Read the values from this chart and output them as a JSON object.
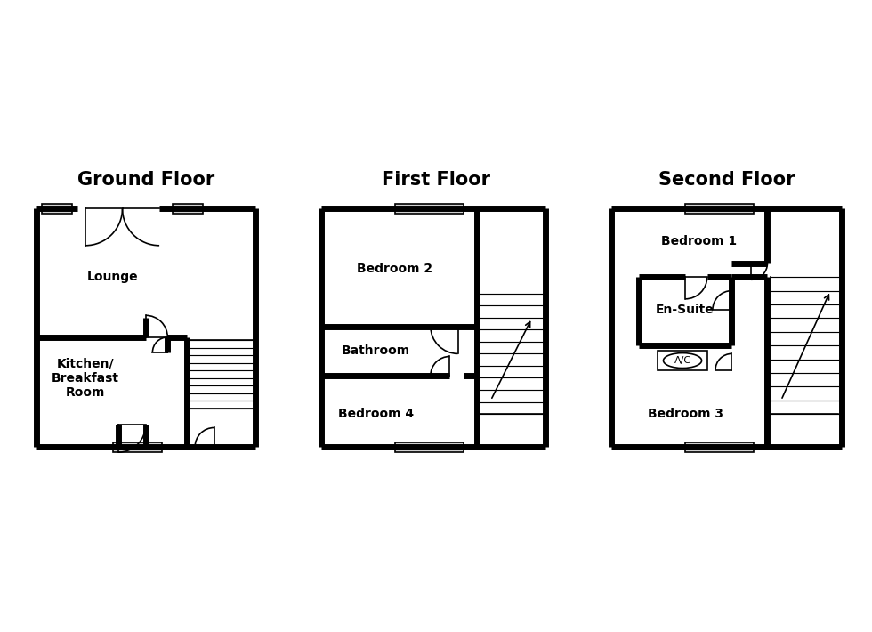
{
  "bg_color": "#ffffff",
  "wall_color": "#000000",
  "wall_lw": 5,
  "thin_lw": 1.2,
  "title_fontsize": 15,
  "label_fontsize": 10,
  "titles": [
    "Ground Floor",
    "First Floor",
    "Second Floor"
  ]
}
